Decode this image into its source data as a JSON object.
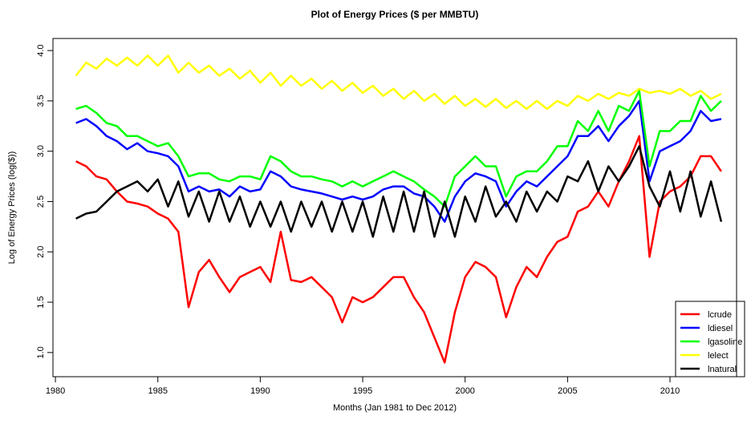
{
  "chart_data": {
    "type": "line",
    "title": "Plot of Energy Prices ($ per MMBTU)",
    "x_label": "Months (Jan 1981 to Dec 2012)",
    "y_label": "Log of Energy Prices (log($))",
    "x": [
      1981,
      1981.5,
      1982,
      1982.5,
      1983,
      1983.5,
      1984,
      1984.5,
      1985,
      1985.5,
      1986,
      1986.5,
      1987,
      1987.5,
      1988,
      1988.5,
      1989,
      1989.5,
      1990,
      1990.5,
      1991,
      1991.5,
      1992,
      1992.5,
      1993,
      1993.5,
      1994,
      1994.5,
      1995,
      1995.5,
      1996,
      1996.5,
      1997,
      1997.5,
      1998,
      1998.5,
      1999,
      1999.5,
      2000,
      2000.5,
      2001,
      2001.5,
      2002,
      2002.5,
      2003,
      2003.5,
      2004,
      2004.5,
      2005,
      2005.5,
      2006,
      2006.5,
      2007,
      2007.5,
      2008,
      2008.5,
      2009,
      2009.5,
      2010,
      2010.5,
      2011,
      2011.5,
      2012,
      2012.5
    ],
    "series": [
      {
        "name": "lcrude",
        "color": "#ff0000",
        "values": [
          2.9,
          2.85,
          2.75,
          2.72,
          2.6,
          2.5,
          2.48,
          2.45,
          2.38,
          2.33,
          2.2,
          1.45,
          1.8,
          1.92,
          1.75,
          1.6,
          1.75,
          1.8,
          1.85,
          1.7,
          2.2,
          1.72,
          1.7,
          1.75,
          1.65,
          1.55,
          1.3,
          1.55,
          1.5,
          1.55,
          1.65,
          1.75,
          1.75,
          1.55,
          1.4,
          1.15,
          0.9,
          1.4,
          1.75,
          1.9,
          1.85,
          1.75,
          1.35,
          1.65,
          1.85,
          1.75,
          1.95,
          2.1,
          2.15,
          2.4,
          2.45,
          2.6,
          2.45,
          2.7,
          2.9,
          3.15,
          1.95,
          2.5,
          2.6,
          2.65,
          2.75,
          2.95,
          2.95,
          2.8
        ]
      },
      {
        "name": "ldiesel",
        "color": "#0000ff",
        "values": [
          3.28,
          3.32,
          3.25,
          3.15,
          3.1,
          3.02,
          3.08,
          3.0,
          2.98,
          2.95,
          2.85,
          2.6,
          2.65,
          2.6,
          2.62,
          2.55,
          2.65,
          2.6,
          2.62,
          2.8,
          2.75,
          2.65,
          2.62,
          2.6,
          2.58,
          2.55,
          2.52,
          2.55,
          2.52,
          2.55,
          2.62,
          2.65,
          2.65,
          2.58,
          2.55,
          2.45,
          2.3,
          2.55,
          2.7,
          2.78,
          2.75,
          2.7,
          2.45,
          2.6,
          2.7,
          2.65,
          2.75,
          2.85,
          2.95,
          3.15,
          3.15,
          3.25,
          3.1,
          3.25,
          3.35,
          3.5,
          2.7,
          3.0,
          3.05,
          3.1,
          3.2,
          3.4,
          3.3,
          3.32
        ]
      },
      {
        "name": "lgasoline",
        "color": "#00ff00",
        "values": [
          3.42,
          3.45,
          3.38,
          3.28,
          3.25,
          3.15,
          3.15,
          3.1,
          3.05,
          3.08,
          2.95,
          2.75,
          2.78,
          2.78,
          2.72,
          2.7,
          2.75,
          2.75,
          2.72,
          2.95,
          2.9,
          2.8,
          2.75,
          2.75,
          2.72,
          2.7,
          2.65,
          2.7,
          2.65,
          2.7,
          2.75,
          2.8,
          2.75,
          2.7,
          2.62,
          2.55,
          2.45,
          2.75,
          2.85,
          2.95,
          2.85,
          2.85,
          2.55,
          2.75,
          2.8,
          2.8,
          2.9,
          3.05,
          3.05,
          3.3,
          3.2,
          3.4,
          3.2,
          3.45,
          3.4,
          3.6,
          2.85,
          3.2,
          3.2,
          3.3,
          3.3,
          3.55,
          3.4,
          3.5
        ]
      },
      {
        "name": "lelect",
        "color": "#ffff00",
        "values": [
          3.75,
          3.88,
          3.82,
          3.92,
          3.85,
          3.93,
          3.85,
          3.95,
          3.85,
          3.95,
          3.78,
          3.88,
          3.78,
          3.85,
          3.75,
          3.82,
          3.72,
          3.8,
          3.68,
          3.78,
          3.65,
          3.75,
          3.65,
          3.72,
          3.62,
          3.7,
          3.6,
          3.68,
          3.58,
          3.65,
          3.55,
          3.62,
          3.52,
          3.6,
          3.5,
          3.57,
          3.47,
          3.55,
          3.45,
          3.52,
          3.44,
          3.52,
          3.43,
          3.5,
          3.42,
          3.5,
          3.42,
          3.5,
          3.45,
          3.55,
          3.5,
          3.57,
          3.52,
          3.58,
          3.55,
          3.62,
          3.58,
          3.6,
          3.57,
          3.62,
          3.55,
          3.6,
          3.52,
          3.57
        ]
      },
      {
        "name": "lnatural",
        "color": "#000000",
        "values": [
          2.33,
          2.38,
          2.4,
          2.5,
          2.6,
          2.65,
          2.7,
          2.6,
          2.72,
          2.45,
          2.7,
          2.35,
          2.6,
          2.3,
          2.6,
          2.3,
          2.55,
          2.25,
          2.5,
          2.25,
          2.5,
          2.2,
          2.5,
          2.25,
          2.5,
          2.2,
          2.5,
          2.2,
          2.5,
          2.15,
          2.55,
          2.2,
          2.6,
          2.2,
          2.6,
          2.15,
          2.5,
          2.15,
          2.55,
          2.3,
          2.65,
          2.35,
          2.5,
          2.3,
          2.6,
          2.4,
          2.6,
          2.5,
          2.75,
          2.7,
          2.9,
          2.6,
          2.85,
          2.7,
          2.85,
          3.05,
          2.65,
          2.45,
          2.8,
          2.4,
          2.8,
          2.35,
          2.7,
          2.3
        ]
      }
    ],
    "xlim": [
      1979.88,
      2013.25
    ],
    "ylim": [
      0.76,
      4.12
    ],
    "xticks": [
      1980,
      1985,
      1990,
      1995,
      2000,
      2005,
      2010
    ],
    "yticks": [
      {
        "value": 1,
        "label": "1.0"
      },
      1.5,
      {
        "value": 2,
        "label": "2.0"
      },
      2.5,
      {
        "value": 3,
        "label": "3.0"
      },
      3.5,
      {
        "value": 4,
        "label": "4.0"
      }
    ],
    "legend": "bottom-right"
  }
}
